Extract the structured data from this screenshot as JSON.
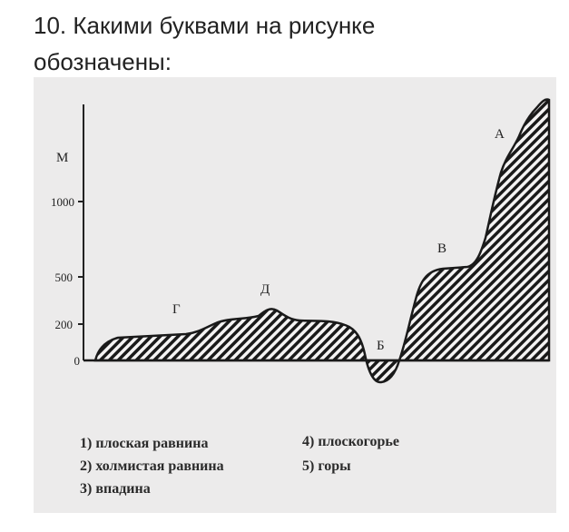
{
  "question": {
    "title": "10. Какими буквами на рисунке обозначены:"
  },
  "figure": {
    "y_axis": {
      "label": "М",
      "ticks": [
        1000,
        500,
        200,
        0
      ]
    },
    "letters": [
      "А",
      "Б",
      "В",
      "Г",
      "Д"
    ],
    "options": [
      "1) плоская равнина",
      "2) холмистая равнина",
      "3) впадина",
      "4) плоскогорье",
      "5) горы"
    ]
  }
}
